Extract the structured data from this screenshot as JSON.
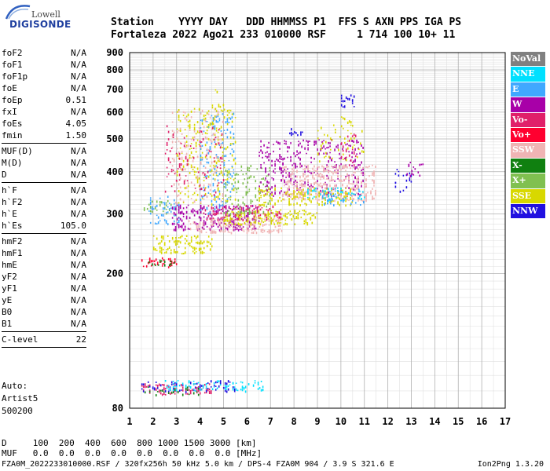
{
  "logo": {
    "top": "Lowell",
    "bottom": "DIGISONDE"
  },
  "header": {
    "labels_line": "Station    YYYY DAY   DDD HHMMSS P1  FFS S AXN PPS IGA PS",
    "values_line": "Fortaleza 2022 Ago21 233 010000 RSF     1 714 100 10+ 11"
  },
  "params": {
    "group1": [
      {
        "label": "foF2",
        "value": "N/A"
      },
      {
        "label": "foF1",
        "value": "N/A"
      },
      {
        "label": "foF1p",
        "value": "N/A"
      },
      {
        "label": "foE",
        "value": "N/A"
      },
      {
        "label": "foEp",
        "value": "0.51"
      },
      {
        "label": "fxI",
        "value": "N/A"
      },
      {
        "label": "foEs",
        "value": "4.05"
      },
      {
        "label": "fmin",
        "value": "1.50"
      }
    ],
    "group2": [
      {
        "label": "MUF(D)",
        "value": "N/A"
      },
      {
        "label": "M(D)",
        "value": "N/A"
      },
      {
        "label": "D",
        "value": "N/A"
      }
    ],
    "group3": [
      {
        "label": "h`F",
        "value": "N/A"
      },
      {
        "label": "h`F2",
        "value": "N/A"
      },
      {
        "label": "h`E",
        "value": "N/A"
      },
      {
        "label": "h`Es",
        "value": "105.0"
      }
    ],
    "group4": [
      {
        "label": "hmF2",
        "value": "N/A"
      },
      {
        "label": "hmF1",
        "value": "N/A"
      },
      {
        "label": "hmE",
        "value": "N/A"
      },
      {
        "label": "yF2",
        "value": "N/A"
      },
      {
        "label": "yF1",
        "value": "N/A"
      },
      {
        "label": "yE",
        "value": "N/A"
      },
      {
        "label": "B0",
        "value": "N/A"
      },
      {
        "label": "B1",
        "value": "N/A"
      }
    ],
    "group5": [
      {
        "label": "C-level",
        "value": "22"
      }
    ]
  },
  "auto": {
    "line1": "Auto:",
    "line2": "Artist5",
    "line3": "500200"
  },
  "legend": [
    {
      "label": "NoVal",
      "color": "#808080"
    },
    {
      "label": "NNE",
      "color": "#00e0ff"
    },
    {
      "label": "E",
      "color": "#40a8ff"
    },
    {
      "label": "W",
      "color": "#a800a8"
    },
    {
      "label": "Vo-",
      "color": "#e0206a"
    },
    {
      "label": "Vo+",
      "color": "#ff0030"
    },
    {
      "label": "SSW",
      "color": "#f0b4b4"
    },
    {
      "label": "X-",
      "color": "#108010"
    },
    {
      "label": "X+",
      "color": "#80c050"
    },
    {
      "label": "SSE",
      "color": "#d8d800"
    },
    {
      "label": "NNW",
      "color": "#2010e0"
    }
  ],
  "bottom": {
    "d_line": "D     100  200  400  600  800 1000 1500 3000 [km]",
    "muf_line": "MUF   0.0  0.0  0.0  0.0  0.0  0.0  0.0  0.0 [MHz]"
  },
  "footer": {
    "text": "FZA0M_2022233010000.RSF / 320fx256h 50 kHz 5.0 km / DPS-4 FZA0M 904 / 3.9 S 321.6 E",
    "version": "Ion2Png 1.3.20"
  },
  "chart_data": {
    "type": "scatter",
    "title": "",
    "xlabel": "",
    "ylabel": "",
    "xlim": [
      1,
      17
    ],
    "ylim": [
      80,
      900
    ],
    "xticks": [
      1,
      2,
      3,
      4,
      5,
      6,
      7,
      8,
      9,
      10,
      11,
      12,
      13,
      14,
      15,
      16,
      17
    ],
    "yticks": [
      80,
      200,
      300,
      400,
      500,
      600,
      700,
      800,
      900
    ],
    "y_scale": "log",
    "grid": true,
    "legend_position": "right",
    "clusters": [
      {
        "series": "Vo+",
        "x": [
          1.5,
          3.0
        ],
        "y": [
          210,
          225
        ],
        "density": 1.0
      },
      {
        "series": "X-",
        "x": [
          1.8,
          3.2
        ],
        "y": [
          210,
          220
        ],
        "density": 0.5
      },
      {
        "series": "Vo-",
        "x": [
          1.5,
          4.5
        ],
        "y": [
          88,
          95
        ],
        "density": 1.0
      },
      {
        "series": "NNW",
        "x": [
          1.5,
          5.5
        ],
        "y": [
          90,
          97
        ],
        "density": 0.6
      },
      {
        "series": "NNE",
        "x": [
          2.5,
          7.0
        ],
        "y": [
          90,
          97
        ],
        "density": 0.6
      },
      {
        "series": "X-",
        "x": [
          1.5,
          4.0
        ],
        "y": [
          88,
          93
        ],
        "density": 0.4
      },
      {
        "series": "E",
        "x": [
          1.8,
          3.2
        ],
        "y": [
          280,
          340
        ],
        "density": 0.6
      },
      {
        "series": "X+",
        "x": [
          1.6,
          2.8
        ],
        "y": [
          300,
          330
        ],
        "density": 0.5
      },
      {
        "series": "SSE",
        "x": [
          2.0,
          4.5
        ],
        "y": [
          230,
          260
        ],
        "density": 1.0
      },
      {
        "series": "W",
        "x": [
          2.8,
          6.5
        ],
        "y": [
          270,
          320
        ],
        "density": 1.0
      },
      {
        "series": "SSW",
        "x": [
          3.5,
          7.5
        ],
        "y": [
          265,
          295
        ],
        "density": 1.0
      },
      {
        "series": "SSE",
        "x": [
          5.0,
          9.0
        ],
        "y": [
          280,
          310
        ],
        "density": 1.0
      },
      {
        "series": "Vo-",
        "x": [
          4.0,
          7.5
        ],
        "y": [
          290,
          320
        ],
        "density": 0.6
      },
      {
        "series": "SSE",
        "x": [
          3.0,
          5.5
        ],
        "y": [
          320,
          620
        ],
        "density": 0.35
      },
      {
        "series": "E",
        "x": [
          4.0,
          5.5
        ],
        "y": [
          300,
          600
        ],
        "density": 0.35
      },
      {
        "series": "SSW",
        "x": [
          2.8,
          5.0
        ],
        "y": [
          320,
          620
        ],
        "density": 0.25
      },
      {
        "series": "Vo-",
        "x": [
          2.5,
          5.0
        ],
        "y": [
          340,
          550
        ],
        "density": 0.2
      },
      {
        "series": "SSE",
        "x": [
          4.5,
          5.0
        ],
        "y": [
          550,
          710
        ],
        "density": 0.25
      },
      {
        "series": "X+",
        "x": [
          5.0,
          7.0
        ],
        "y": [
          300,
          420
        ],
        "density": 0.4
      },
      {
        "series": "W",
        "x": [
          6.5,
          11.0
        ],
        "y": [
          340,
          500
        ],
        "density": 0.5
      },
      {
        "series": "SSW",
        "x": [
          7.5,
          11.5
        ],
        "y": [
          330,
          420
        ],
        "density": 1.0
      },
      {
        "series": "SSE",
        "x": [
          6.5,
          10.5
        ],
        "y": [
          320,
          360
        ],
        "density": 0.8
      },
      {
        "series": "NNE",
        "x": [
          8.5,
          11.0
        ],
        "y": [
          330,
          360
        ],
        "density": 0.5
      },
      {
        "series": "E",
        "x": [
          9.0,
          11.0
        ],
        "y": [
          320,
          360
        ],
        "density": 0.4
      },
      {
        "series": "NNW",
        "x": [
          7.8,
          8.4
        ],
        "y": [
          510,
          540
        ],
        "density": 0.8
      },
      {
        "series": "NNW",
        "x": [
          10.0,
          10.6
        ],
        "y": [
          620,
          680
        ],
        "density": 0.8
      },
      {
        "series": "NNW",
        "x": [
          12.3,
          13.0
        ],
        "y": [
          350,
          410
        ],
        "density": 0.4
      },
      {
        "series": "W",
        "x": [
          12.8,
          13.5
        ],
        "y": [
          390,
          430
        ],
        "density": 0.6
      },
      {
        "series": "SSE",
        "x": [
          10.0,
          10.5
        ],
        "y": [
          540,
          600
        ],
        "density": 0.4
      },
      {
        "series": "Vo-",
        "x": [
          10.0,
          10.7
        ],
        "y": [
          420,
          520
        ],
        "density": 0.4
      },
      {
        "series": "SSE",
        "x": [
          9.0,
          11.0
        ],
        "y": [
          420,
          560
        ],
        "density": 0.2
      }
    ]
  }
}
